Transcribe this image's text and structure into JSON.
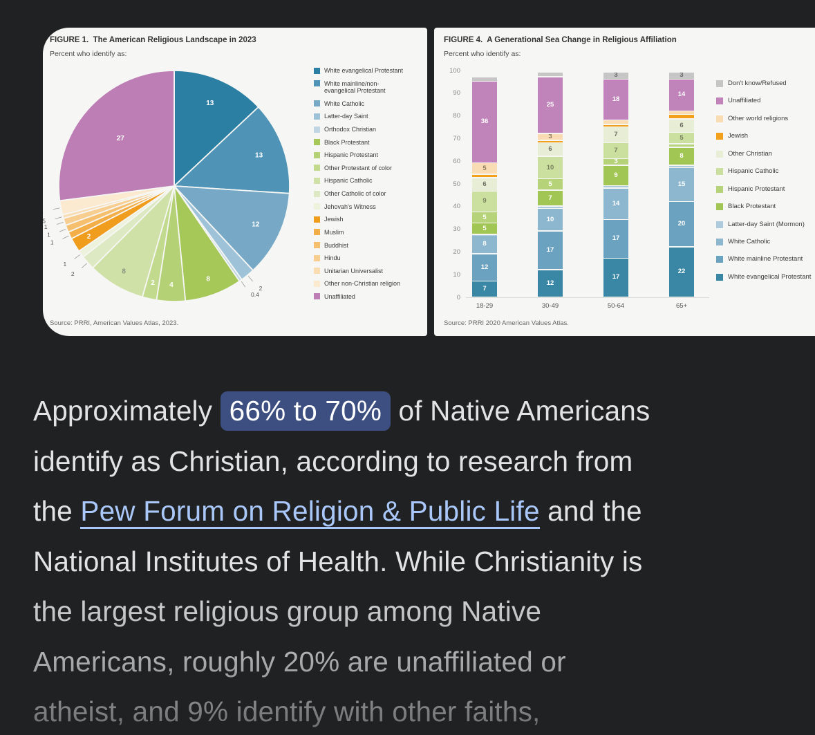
{
  "page": {
    "background": "#202122"
  },
  "chart_data": [
    {
      "type": "pie",
      "title": "FIGURE 1.  The American Religious Landscape in 2023",
      "subtitle": "Percent who identify as:",
      "source": "Source: PRRI, American Values Atlas, 2023.",
      "start_angle": "top, clockwise",
      "slices": [
        {
          "label": "White evangelical Protestant",
          "value": 13,
          "color": "#2b7fa3",
          "label_pos": "inside",
          "label_color": "#ffffff"
        },
        {
          "label": "White mainline/non-evangelical Protestant",
          "legend_label": "White mainline/non-\nevangelical Protestant",
          "value": 13,
          "color": "#4f94b6",
          "label_pos": "inside",
          "label_color": "#ffffff"
        },
        {
          "label": "White Catholic",
          "value": 12,
          "color": "#77a9c6",
          "label_pos": "inside",
          "label_color": "#ffffff"
        },
        {
          "label": "Latter-day Saint",
          "value": 2,
          "color": "#9ec3d8",
          "label_pos": "outside"
        },
        {
          "label": "Orthodox Christian",
          "value": 0.4,
          "color": "#c0d7e3",
          "label_pos": "outside"
        },
        {
          "label": "Black Protestant",
          "value": 8,
          "color": "#a6c859",
          "label_pos": "inside",
          "label_color": "#ffffff"
        },
        {
          "label": "Hispanic Protestant",
          "value": 4,
          "color": "#b5d176",
          "label_pos": "inside",
          "label_color": "#ffffff"
        },
        {
          "label": "Other Protestant of color",
          "value": 2,
          "color": "#c2da8e",
          "label_pos": "inside",
          "label_color": "#ffffff"
        },
        {
          "label": "Hispanic Catholic",
          "value": 8,
          "color": "#cfe1a6",
          "label_pos": "inside",
          "label_color": "#8d9384"
        },
        {
          "label": "Other Catholic of color",
          "value": 2,
          "color": "#dde9c2",
          "label_pos": "outside"
        },
        {
          "label": "Jehovah's Witness",
          "value": 1,
          "color": "#ecf2db",
          "label_pos": "outside"
        },
        {
          "label": "Jewish",
          "value": 2,
          "color": "#f09d1e",
          "label_pos": "inside",
          "label_color": "#ffffff"
        },
        {
          "label": "Muslim",
          "value": 1,
          "color": "#f3ae47",
          "label_pos": "outside"
        },
        {
          "label": "Buddhist",
          "value": 1,
          "color": "#f6bf6d",
          "label_pos": "outside"
        },
        {
          "label": "Hindu",
          "value": 1,
          "color": "#f8cd90",
          "label_pos": "outside"
        },
        {
          "label": "Unitarian Universalist",
          "value": 0.5,
          "color": "#fadcb2",
          "label_pos": "outside"
        },
        {
          "label": "Other non-Christian religion",
          "value": 2,
          "color": "#fcead0",
          "label_pos": "outside"
        },
        {
          "label": "Unaffiliated",
          "value": 27,
          "color": "#bd7eb6",
          "label_pos": "inside",
          "label_color": "#ffffff"
        }
      ]
    },
    {
      "type": "stacked-bar",
      "title": "FIGURE 4.  A Generational Sea Change in Religious Affiliation",
      "subtitle": "Percent who identify as:",
      "source": "Source: PRRI 2020 American Values Atlas.",
      "categories": [
        "18-29",
        "30-49",
        "50-64",
        "65+"
      ],
      "ylim": [
        0,
        100
      ],
      "yticks": [
        0,
        10,
        20,
        30,
        40,
        50,
        60,
        70,
        80,
        90,
        100
      ],
      "legend_position": "right, top-of-stack first",
      "series_bottom_up": [
        {
          "name": "White evangelical Protestant",
          "color": "#3a87a5",
          "values": [
            7,
            12,
            17,
            22
          ],
          "label_color": "#ffffff"
        },
        {
          "name": "White mainline Protestant",
          "color": "#6aa2bf",
          "values": [
            12,
            17,
            17,
            20
          ],
          "label_color": "#ffffff"
        },
        {
          "name": "White Catholic",
          "color": "#8db7ce",
          "values": [
            8,
            10,
            14,
            15
          ],
          "label_color": "#ffffff"
        },
        {
          "name": "Latter-day Saint (Mormon)",
          "color": "#aecbdd",
          "values": [
            0.5,
            1,
            1,
            1
          ],
          "label_color": "#556677"
        },
        {
          "name": "Black Protestant",
          "color": "#a2c653",
          "values": [
            5,
            7,
            9,
            8
          ],
          "label_color": "#ffffff"
        },
        {
          "name": "Hispanic Protestant",
          "color": "#b7d379",
          "values": [
            5,
            5,
            3,
            1.5
          ],
          "label_color": "#ffffff"
        },
        {
          "name": "Hispanic Catholic",
          "color": "#cbdf9e",
          "values": [
            9,
            10,
            7,
            5
          ],
          "label_color": "#77805f"
        },
        {
          "name": "Other Christian",
          "color": "#e8eed6",
          "values": [
            6,
            6,
            7,
            6
          ],
          "label_color": "#6e6e64"
        },
        {
          "name": "Jewish",
          "color": "#f3a11d",
          "values": [
            1.5,
            1,
            1,
            2
          ],
          "label_color": "#ffffff"
        },
        {
          "name": "Other world religions",
          "color": "#f9dcb3",
          "values": [
            5,
            3,
            2,
            1.5
          ],
          "label_color": "#8a7a5e"
        },
        {
          "name": "Unaffiliated",
          "color": "#c084ba",
          "values": [
            36,
            25,
            18,
            14
          ],
          "label_color": "#ffffff"
        },
        {
          "name": "Don't know/Refused",
          "color": "#c6c6c6",
          "values": [
            2,
            2,
            3,
            3
          ],
          "label_color": "#666666"
        }
      ]
    }
  ],
  "answer": {
    "highlight_color": "#3d4f80",
    "link_color": "#a9c7f8",
    "lines": [
      {
        "segments": [
          {
            "type": "text",
            "text": "Approximately "
          },
          {
            "type": "highlight",
            "text": "66% to 70%"
          },
          {
            "type": "text",
            "text": " of Native Americans"
          }
        ]
      },
      {
        "segments": [
          {
            "type": "text",
            "text": "identify as Christian, according to research from"
          }
        ]
      },
      {
        "segments": [
          {
            "type": "text",
            "text": "the "
          },
          {
            "type": "link",
            "text": "Pew Forum on Religion & Public Life"
          },
          {
            "type": "text",
            "text": " and the"
          }
        ]
      },
      {
        "segments": [
          {
            "type": "text",
            "text": "National Institutes of Health. While Christianity is"
          }
        ]
      },
      {
        "segments": [
          {
            "type": "text",
            "text": "the largest religious group among Native"
          }
        ]
      },
      {
        "segments": [
          {
            "type": "text",
            "text": "Americans, roughly 20% are unaffiliated or"
          }
        ]
      },
      {
        "segments": [
          {
            "type": "text",
            "text": "atheist, and 9% identify with other faiths,"
          }
        ]
      }
    ]
  }
}
